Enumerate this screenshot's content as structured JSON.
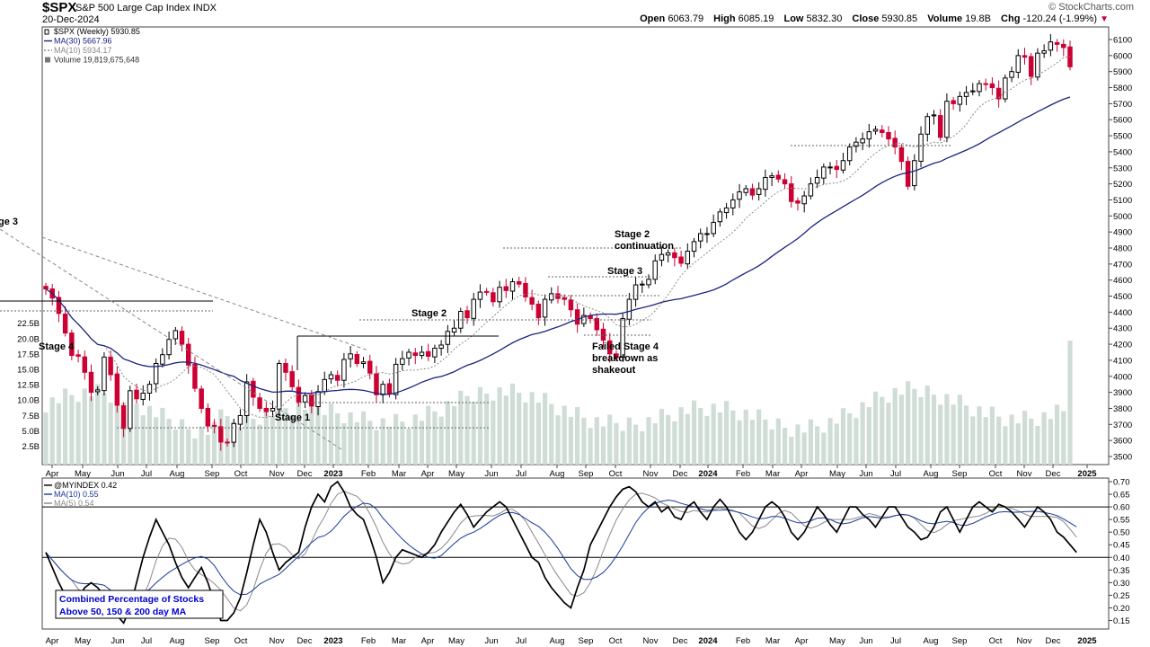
{
  "header": {
    "symbol": "$SPX",
    "description": "S&P 500 Large Cap Index",
    "exchange": "INDX",
    "date": "20-Dec-2024",
    "watermark": "© StockCharts.com",
    "open_label": "Open",
    "open": "6063.79",
    "high_label": "High",
    "high": "6085.19",
    "low_label": "Low",
    "low": "5832.30",
    "close_label": "Close",
    "close": "5930.85",
    "volume_label": "Volume",
    "volume": "19.8B",
    "chg_label": "Chg",
    "chg": "-120.24 (-1.99%)"
  },
  "legend_top": [
    {
      "text": "$SPX (Weekly) 5930.85",
      "color": "#000000"
    },
    {
      "text": "MA(30) 5667.96",
      "color": "#1a237e"
    },
    {
      "text": "MA(10) 5934.17",
      "color": "#888888"
    },
    {
      "text": "Volume 19,819,675,648",
      "color": "#333333"
    }
  ],
  "legend_bottom": [
    {
      "text": "@MYINDEX 0.42",
      "color": "#000000"
    },
    {
      "text": "MA(10) 0.55",
      "color": "#1a3a9a"
    },
    {
      "text": "MA(5) 0.54",
      "color": "#888888"
    }
  ],
  "annotations": {
    "stage3_left": "ge 3",
    "stage4": "Stage 4",
    "stage1": "Stage 1",
    "stage2": "Stage 2",
    "stage2c_1": "Stage 2",
    "stage2c_2": "continuation",
    "stage3": "Stage 3",
    "failed_1": "Failed Stage 4",
    "failed_2": "breakdown as",
    "failed_3": "shakeout",
    "box_1": "Combined Percentage of Stocks",
    "box_2": "Above 50, 150 & 200 day MA"
  },
  "colors": {
    "up": "#000000",
    "down": "#cc0033",
    "ma30": "#1a237e",
    "ma10": "#8a8a8a",
    "volume": "#cfddd6",
    "box_text": "#0000cc"
  },
  "chart_data": [
    {
      "type": "candlestick",
      "title": "$SPX (Weekly)",
      "y_ticks": [
        3500,
        3600,
        3700,
        3800,
        3900,
        4000,
        4100,
        4200,
        4300,
        4400,
        4500,
        4600,
        4700,
        4800,
        4900,
        5000,
        5100,
        5200,
        5300,
        5400,
        5500,
        5600,
        5700,
        5800,
        5900,
        6000,
        6100
      ],
      "x_ticks": [
        "Apr",
        "May",
        "Jun",
        "Jul",
        "Aug",
        "Sep",
        "Oct",
        "Nov",
        "Dec",
        "2023",
        "Feb",
        "Mar",
        "Apr",
        "May",
        "Jun",
        "Jul",
        "Aug",
        "Sep",
        "Oct",
        "Nov",
        "Dec",
        "2024",
        "Feb",
        "Mar",
        "Apr",
        "May",
        "Jun",
        "Jul",
        "Aug",
        "Sep",
        "Oct",
        "Nov",
        "Dec",
        "2025"
      ],
      "volume_ticks": [
        "2.5B",
        "5.0B",
        "7.5B",
        "10.0B",
        "12.5B",
        "15.0B",
        "17.5B",
        "20.0B",
        "22.5B"
      ],
      "close": [
        4545,
        4488,
        4392,
        4270,
        4130,
        4125,
        4025,
        3900,
        3915,
        4120,
        4010,
        3820,
        3675,
        3910,
        3860,
        3895,
        3950,
        4080,
        4135,
        4230,
        4285,
        4200,
        4070,
        3925,
        3800,
        3690,
        3690,
        3590,
        3585,
        3705,
        3755,
        3965,
        3870,
        3800,
        3780,
        3800,
        4080,
        4025,
        3935,
        3840,
        3880,
        3815,
        3905,
        3980,
        4010,
        3975,
        4105,
        4140,
        4080,
        4090,
        4020,
        3885,
        3950,
        3890,
        4075,
        4110,
        4150,
        4130,
        4150,
        4125,
        4175,
        4195,
        4280,
        4300,
        4405,
        4365,
        4480,
        4525,
        4525,
        4465,
        4555,
        4535,
        4590,
        4575,
        4495,
        4450,
        4365,
        4480,
        4515,
        4485,
        4480,
        4415,
        4325,
        4380,
        4360,
        4290,
        4225,
        4140,
        4115,
        4360,
        4480,
        4570,
        4575,
        4605,
        4720,
        4760,
        4770,
        4740,
        4705,
        4780,
        4840,
        4890,
        4890,
        4960,
        5025,
        5050,
        5100,
        5150,
        5170,
        5130,
        5170,
        5240,
        5250,
        5230,
        5200,
        5090,
        5080,
        5125,
        5200,
        5240,
        5305,
        5305,
        5290,
        5345,
        5430,
        5460,
        5480,
        5525,
        5540,
        5520,
        5480,
        5430,
        5340,
        5185,
        5345,
        5510,
        5620,
        5630,
        5490,
        5715,
        5700,
        5745,
        5770,
        5780,
        5825,
        5820,
        5800,
        5730,
        5860,
        5900,
        6000,
        5990,
        5870,
        6015,
        6030,
        6085,
        6070,
        6050,
        5930
      ],
      "ma30_end": 5667.96,
      "ma10_end": 5934.17,
      "volume_last": "19,819,675,648"
    },
    {
      "type": "line",
      "title": "@MYINDEX",
      "y_ticks": [
        0.15,
        0.2,
        0.25,
        0.3,
        0.35,
        0.4,
        0.45,
        0.5,
        0.55,
        0.6,
        0.65,
        0.7
      ],
      "hlines": [
        0.4,
        0.6
      ],
      "values": [
        0.42,
        0.36,
        0.3,
        0.25,
        0.22,
        0.24,
        0.28,
        0.3,
        0.28,
        0.25,
        0.22,
        0.17,
        0.14,
        0.2,
        0.3,
        0.4,
        0.48,
        0.55,
        0.5,
        0.45,
        0.38,
        0.32,
        0.28,
        0.32,
        0.36,
        0.3,
        0.22,
        0.15,
        0.15,
        0.18,
        0.24,
        0.34,
        0.45,
        0.55,
        0.5,
        0.42,
        0.35,
        0.38,
        0.4,
        0.42,
        0.52,
        0.6,
        0.65,
        0.62,
        0.68,
        0.7,
        0.66,
        0.6,
        0.57,
        0.55,
        0.48,
        0.4,
        0.3,
        0.34,
        0.4,
        0.43,
        0.42,
        0.41,
        0.4,
        0.42,
        0.45,
        0.5,
        0.54,
        0.58,
        0.61,
        0.57,
        0.52,
        0.55,
        0.58,
        0.6,
        0.62,
        0.6,
        0.55,
        0.5,
        0.45,
        0.4,
        0.38,
        0.32,
        0.28,
        0.25,
        0.22,
        0.2,
        0.28,
        0.35,
        0.45,
        0.5,
        0.55,
        0.6,
        0.64,
        0.67,
        0.68,
        0.66,
        0.62,
        0.6,
        0.62,
        0.58,
        0.6,
        0.56,
        0.55,
        0.6,
        0.62,
        0.58,
        0.55,
        0.6,
        0.63,
        0.6,
        0.55,
        0.5,
        0.47,
        0.5,
        0.55,
        0.6,
        0.62,
        0.6,
        0.56,
        0.5,
        0.47,
        0.5,
        0.55,
        0.6,
        0.57,
        0.53,
        0.5,
        0.55,
        0.6,
        0.6,
        0.57,
        0.55,
        0.52,
        0.56,
        0.6,
        0.6,
        0.56,
        0.52,
        0.5,
        0.47,
        0.48,
        0.52,
        0.58,
        0.6,
        0.55,
        0.5,
        0.55,
        0.6,
        0.62,
        0.6,
        0.58,
        0.61,
        0.6,
        0.58,
        0.55,
        0.52,
        0.56,
        0.6,
        0.58,
        0.55,
        0.5,
        0.48,
        0.45,
        0.42
      ],
      "ma10_end": 0.55,
      "ma5_end": 0.54
    }
  ]
}
